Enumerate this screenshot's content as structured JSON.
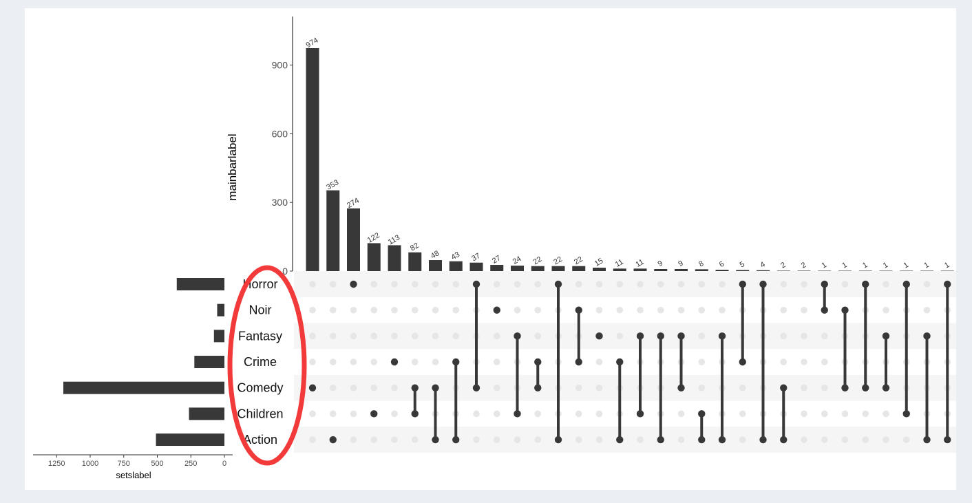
{
  "chart_data": {
    "type": "upset",
    "ylabel": "mainbarlabel",
    "xlabel_sets": "setslabel",
    "ylim": [
      0,
      1120
    ],
    "y_ticks": [
      0,
      300,
      600,
      900
    ],
    "set_ticks": [
      1250,
      1000,
      750,
      500,
      250,
      0
    ],
    "sets": [
      {
        "name": "Horror",
        "size": 355
      },
      {
        "name": "Noir",
        "size": 54
      },
      {
        "name": "Fantasy",
        "size": 78
      },
      {
        "name": "Crime",
        "size": 224
      },
      {
        "name": "Comedy",
        "size": 1200
      },
      {
        "name": "Children",
        "size": 264
      },
      {
        "name": "Action",
        "size": 510
      }
    ],
    "intersections": [
      {
        "size": 974,
        "sets": [
          "Comedy"
        ]
      },
      {
        "size": 353,
        "sets": [
          "Action"
        ]
      },
      {
        "size": 274,
        "sets": [
          "Horror"
        ]
      },
      {
        "size": 122,
        "sets": [
          "Children"
        ]
      },
      {
        "size": 113,
        "sets": [
          "Crime"
        ]
      },
      {
        "size": 82,
        "sets": [
          "Comedy",
          "Children"
        ]
      },
      {
        "size": 48,
        "sets": [
          "Comedy",
          "Action"
        ]
      },
      {
        "size": 43,
        "sets": [
          "Crime",
          "Action"
        ]
      },
      {
        "size": 37,
        "sets": [
          "Horror",
          "Comedy"
        ]
      },
      {
        "size": 27,
        "sets": [
          "Noir"
        ]
      },
      {
        "size": 24,
        "sets": [
          "Fantasy",
          "Children"
        ]
      },
      {
        "size": 22,
        "sets": [
          "Crime",
          "Comedy"
        ]
      },
      {
        "size": 22,
        "sets": [
          "Horror",
          "Action"
        ]
      },
      {
        "size": 22,
        "sets": [
          "Noir",
          "Crime"
        ]
      },
      {
        "size": 15,
        "sets": [
          "Fantasy"
        ]
      },
      {
        "size": 11,
        "sets": [
          "Crime",
          "Action"
        ]
      },
      {
        "size": 11,
        "sets": [
          "Fantasy",
          "Children"
        ]
      },
      {
        "size": 9,
        "sets": [
          "Fantasy",
          "Action"
        ]
      },
      {
        "size": 9,
        "sets": [
          "Fantasy",
          "Comedy"
        ]
      },
      {
        "size": 8,
        "sets": [
          "Children",
          "Action"
        ]
      },
      {
        "size": 6,
        "sets": [
          "Fantasy",
          "Action"
        ]
      },
      {
        "size": 5,
        "sets": [
          "Horror",
          "Crime"
        ]
      },
      {
        "size": 4,
        "sets": [
          "Horror",
          "Action"
        ]
      },
      {
        "size": 2,
        "sets": [
          "Comedy",
          "Action"
        ]
      },
      {
        "size": 2,
        "sets": []
      },
      {
        "size": 1,
        "sets": [
          "Horror",
          "Noir"
        ]
      },
      {
        "size": 1,
        "sets": [
          "Noir",
          "Comedy"
        ]
      },
      {
        "size": 1,
        "sets": [
          "Horror",
          "Comedy"
        ]
      },
      {
        "size": 1,
        "sets": [
          "Fantasy",
          "Comedy"
        ]
      },
      {
        "size": 1,
        "sets": [
          "Horror",
          "Children"
        ]
      },
      {
        "size": 1,
        "sets": [
          "Fantasy",
          "Action"
        ]
      },
      {
        "size": 1,
        "sets": [
          "Horror",
          "Action"
        ]
      }
    ],
    "colors": {
      "bar": "#383838",
      "dot_on": "#383838",
      "dot_off": "#e6e6e6",
      "stripe": "#f5f5f5",
      "highlight": "#f23a3a"
    },
    "annotation": "red ellipse around set labels"
  }
}
